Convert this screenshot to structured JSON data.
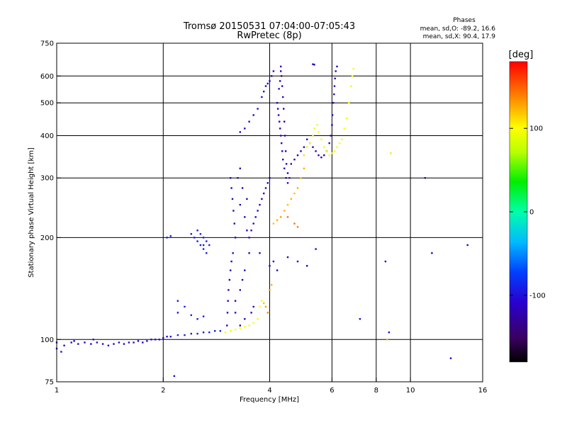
{
  "chart_data": {
    "type": "scatter",
    "title": "Tromsø 20150531 07:04:00-07:05:43",
    "subtitle": "RwPretec (8p)",
    "xlabel": "Frequency [MHz]",
    "ylabel": "Stationary phase Virtual Height [km]",
    "x_scale": "log",
    "y_scale": "log",
    "xlim": [
      1,
      16
    ],
    "ylim": [
      75,
      750
    ],
    "x_ticks": [
      1,
      2,
      4,
      6,
      8,
      10,
      16
    ],
    "y_ticks": [
      75,
      100,
      200,
      300,
      400,
      500,
      600,
      750
    ],
    "x_gridlines": [
      2,
      4,
      6,
      8,
      10
    ],
    "y_gridlines": [
      100,
      200,
      300,
      400,
      500,
      600
    ],
    "grid": true,
    "annotation": {
      "heading": "Phases",
      "lines": [
        "mean, sd,O: -89.2, 16.6",
        "mean, sd,X:  90.4, 17.9"
      ]
    },
    "colorbar": {
      "label": "[deg]",
      "range": [
        -180,
        180
      ],
      "ticks": [
        100,
        0,
        -100
      ]
    },
    "series": [
      {
        "points": [
          [
            1.0,
            98,
            -110
          ],
          [
            1.05,
            96,
            -105
          ],
          [
            1.1,
            98,
            -105
          ],
          [
            1.15,
            97,
            -110
          ],
          [
            1.2,
            98,
            -108
          ],
          [
            1.25,
            97,
            -105
          ],
          [
            1.3,
            98,
            -110
          ],
          [
            1.35,
            97,
            -105
          ],
          [
            1.4,
            96,
            -110
          ],
          [
            1.45,
            97,
            -110
          ],
          [
            1.5,
            98,
            -105
          ],
          [
            1.55,
            97,
            -108
          ],
          [
            1.6,
            98,
            -110
          ],
          [
            1.65,
            98,
            -105
          ],
          [
            1.7,
            99,
            -108
          ],
          [
            1.75,
            98,
            -110
          ],
          [
            1.8,
            99,
            -105
          ],
          [
            1.85,
            100,
            -110
          ],
          [
            1.9,
            100,
            -105
          ],
          [
            1.95,
            100,
            -108
          ],
          [
            2.0,
            101,
            -110
          ],
          [
            2.05,
            102,
            -105
          ],
          [
            2.1,
            102,
            -100
          ],
          [
            2.2,
            103,
            -90
          ],
          [
            2.3,
            103,
            -95
          ],
          [
            2.4,
            104,
            -95
          ],
          [
            2.5,
            104,
            -90
          ],
          [
            2.6,
            105,
            -95
          ],
          [
            2.7,
            105,
            -90
          ],
          [
            2.8,
            106,
            -95
          ],
          [
            2.9,
            106,
            -90
          ],
          [
            1.0,
            94,
            -105
          ],
          [
            1.03,
            92,
            -110
          ],
          [
            1.12,
            99,
            -108
          ],
          [
            1.27,
            100,
            -105
          ],
          [
            2.15,
            78,
            -110
          ]
        ]
      },
      {
        "points": [
          [
            2.4,
            205,
            -95
          ],
          [
            2.45,
            200,
            -90
          ],
          [
            2.5,
            195,
            -92
          ],
          [
            2.55,
            190,
            -95
          ],
          [
            2.6,
            185,
            -90
          ],
          [
            2.65,
            180,
            -92
          ],
          [
            2.5,
            210,
            -95
          ],
          [
            2.55,
            205,
            -90
          ],
          [
            2.6,
            200,
            -92
          ],
          [
            2.65,
            195,
            -95
          ],
          [
            2.7,
            190,
            -90
          ],
          [
            2.6,
            190,
            -92
          ],
          [
            2.05,
            200,
            -95
          ],
          [
            2.1,
            202,
            -90
          ],
          [
            2.2,
            120,
            -95
          ],
          [
            2.3,
            125,
            -92
          ],
          [
            2.4,
            118,
            -90
          ],
          [
            2.5,
            115,
            -95
          ],
          [
            2.6,
            117,
            -92
          ],
          [
            2.2,
            130,
            -95
          ]
        ]
      },
      {
        "points": [
          [
            3.1,
            300,
            -115
          ],
          [
            3.12,
            280,
            -118
          ],
          [
            3.14,
            260,
            -120
          ],
          [
            3.16,
            240,
            -118
          ],
          [
            3.18,
            220,
            -122
          ],
          [
            3.2,
            200,
            -120
          ],
          [
            3.15,
            180,
            -118
          ],
          [
            3.12,
            170,
            -122
          ],
          [
            3.1,
            160,
            -120
          ],
          [
            3.08,
            150,
            -118
          ],
          [
            3.06,
            140,
            -122
          ],
          [
            3.05,
            130,
            -120
          ],
          [
            3.04,
            120,
            -118
          ],
          [
            3.03,
            110,
            -122
          ],
          [
            3.3,
            320,
            -120
          ],
          [
            3.25,
            300,
            -118
          ],
          [
            3.35,
            280,
            -120
          ],
          [
            3.3,
            250,
            -118
          ],
          [
            3.4,
            230,
            -120
          ],
          [
            3.45,
            210,
            -122
          ],
          [
            3.5,
            200,
            -118
          ],
          [
            3.5,
            180,
            -120
          ],
          [
            3.4,
            160,
            -122
          ],
          [
            3.35,
            150,
            -118
          ],
          [
            3.3,
            140,
            -120
          ],
          [
            3.2,
            130,
            -122
          ],
          [
            3.2,
            120,
            -118
          ],
          [
            3.3,
            110,
            -120
          ],
          [
            3.4,
            115,
            -122
          ],
          [
            3.55,
            120,
            -118
          ],
          [
            3.6,
            125,
            -120
          ],
          [
            3.65,
            230,
            -118
          ],
          [
            3.7,
            240,
            -120
          ],
          [
            3.75,
            250,
            -118
          ],
          [
            3.8,
            260,
            -120
          ],
          [
            3.85,
            270,
            -118
          ],
          [
            3.9,
            280,
            -120
          ],
          [
            3.95,
            290,
            -118
          ],
          [
            4.0,
            300,
            -118
          ],
          [
            3.6,
            220,
            -120
          ],
          [
            3.55,
            210,
            -122
          ],
          [
            3.45,
            260,
            -118
          ],
          [
            3.3,
            410,
            -115
          ],
          [
            3.4,
            420,
            -113
          ],
          [
            3.5,
            440,
            -112
          ],
          [
            3.6,
            460,
            -110
          ],
          [
            3.7,
            480,
            -112
          ],
          [
            3.8,
            520,
            -110
          ],
          [
            3.85,
            540,
            -108
          ],
          [
            3.9,
            560,
            -110
          ],
          [
            4.05,
            600,
            -112
          ],
          [
            4.1,
            620,
            -110
          ],
          [
            4.0,
            580,
            -112
          ],
          [
            3.95,
            570,
            -108
          ],
          [
            3.75,
            180,
            -120
          ],
          [
            4.0,
            165,
            -118
          ],
          [
            4.1,
            170,
            -120
          ],
          [
            4.2,
            160,
            -118
          ]
        ]
      },
      {
        "points": [
          [
            4.3,
            640,
            -118
          ],
          [
            4.32,
            600,
            -120
          ],
          [
            4.34,
            560,
            -118
          ],
          [
            4.36,
            520,
            -120
          ],
          [
            4.38,
            480,
            -118
          ],
          [
            4.4,
            440,
            -120
          ],
          [
            4.42,
            400,
            -118
          ],
          [
            4.44,
            360,
            -120
          ],
          [
            4.46,
            330,
            -118
          ],
          [
            4.5,
            310,
            -120
          ],
          [
            4.55,
            300,
            -118
          ],
          [
            4.2,
            500,
            -120
          ],
          [
            4.22,
            480,
            -118
          ],
          [
            4.24,
            460,
            -120
          ],
          [
            4.26,
            440,
            -118
          ],
          [
            4.28,
            420,
            -120
          ],
          [
            4.3,
            400,
            -118
          ],
          [
            4.32,
            380,
            -120
          ],
          [
            4.34,
            360,
            -118
          ],
          [
            4.36,
            340,
            -120
          ],
          [
            4.4,
            320,
            -118
          ],
          [
            4.45,
            300,
            -120
          ],
          [
            4.5,
            290,
            -118
          ],
          [
            4.6,
            330,
            -120
          ],
          [
            4.7,
            340,
            -118
          ],
          [
            4.8,
            350,
            -120
          ],
          [
            4.9,
            360,
            -118
          ],
          [
            5.0,
            370,
            -120
          ],
          [
            5.1,
            390,
            -118
          ],
          [
            5.2,
            380,
            -120
          ],
          [
            5.3,
            370,
            -118
          ],
          [
            5.4,
            360,
            -120
          ],
          [
            5.5,
            350,
            -118
          ],
          [
            5.6,
            345,
            -120
          ],
          [
            5.7,
            350,
            -118
          ],
          [
            5.8,
            360,
            -120
          ],
          [
            5.9,
            380,
            -118
          ],
          [
            5.95,
            400,
            -120
          ],
          [
            6.0,
            430,
            -118
          ],
          [
            6.02,
            460,
            -120
          ],
          [
            6.05,
            500,
            -118
          ],
          [
            6.08,
            530,
            -120
          ],
          [
            6.1,
            560,
            -118
          ],
          [
            6.12,
            590,
            -120
          ],
          [
            6.15,
            620,
            -118
          ],
          [
            6.2,
            640,
            -120
          ],
          [
            5.3,
            650,
            -118
          ],
          [
            5.35,
            648,
            -120
          ],
          [
            4.25,
            550,
            -118
          ],
          [
            4.28,
            580,
            -120
          ],
          [
            4.3,
            620,
            -118
          ]
        ]
      },
      {
        "points": [
          [
            3.0,
            105,
            100
          ],
          [
            3.1,
            106,
            95
          ],
          [
            3.2,
            107,
            100
          ],
          [
            3.3,
            108,
            95
          ],
          [
            3.4,
            109,
            100
          ],
          [
            3.5,
            110,
            95
          ],
          [
            3.6,
            112,
            100
          ],
          [
            3.7,
            115,
            95
          ],
          [
            3.75,
            125,
            100
          ],
          [
            3.8,
            130,
            95
          ],
          [
            3.85,
            128,
            120
          ],
          [
            3.9,
            125,
            130
          ],
          [
            3.95,
            120,
            140
          ],
          [
            4.0,
            140,
            130
          ],
          [
            4.05,
            145,
            125
          ],
          [
            4.1,
            220,
            120
          ],
          [
            4.2,
            225,
            125
          ],
          [
            4.3,
            230,
            130
          ],
          [
            4.4,
            240,
            125
          ],
          [
            4.5,
            250,
            120
          ],
          [
            4.6,
            260,
            125
          ],
          [
            4.7,
            270,
            120
          ],
          [
            4.8,
            280,
            125
          ],
          [
            4.9,
            300,
            120
          ],
          [
            5.0,
            320,
            125
          ],
          [
            5.0,
            350,
            110
          ],
          [
            5.1,
            370,
            105
          ],
          [
            5.2,
            380,
            100
          ],
          [
            5.3,
            400,
            95
          ],
          [
            5.35,
            420,
            100
          ],
          [
            5.45,
            430,
            95
          ],
          [
            5.5,
            410,
            100
          ],
          [
            5.6,
            390,
            95
          ],
          [
            5.7,
            370,
            100
          ],
          [
            5.8,
            360,
            95
          ],
          [
            5.9,
            350,
            100
          ],
          [
            6.0,
            355,
            95
          ],
          [
            6.1,
            360,
            100
          ],
          [
            6.2,
            370,
            95
          ],
          [
            6.3,
            380,
            100
          ],
          [
            6.4,
            390,
            95
          ],
          [
            6.5,
            420,
            100
          ],
          [
            6.6,
            450,
            95
          ],
          [
            6.7,
            500,
            100
          ],
          [
            6.8,
            560,
            95
          ],
          [
            6.85,
            600,
            100
          ],
          [
            6.9,
            630,
            95
          ],
          [
            4.7,
            220,
            145
          ],
          [
            4.8,
            215,
            140
          ],
          [
            4.5,
            230,
            145
          ],
          [
            8.8,
            355,
            110
          ],
          [
            8.6,
            100,
            120
          ]
        ]
      },
      {
        "points": [
          [
            8.5,
            170,
            -115
          ],
          [
            8.7,
            105,
            -110
          ],
          [
            7.2,
            115,
            -112
          ],
          [
            11.0,
            300,
            -110
          ],
          [
            11.5,
            180,
            -115
          ],
          [
            13.0,
            88,
            -112
          ],
          [
            14.5,
            190,
            -118
          ],
          [
            4.5,
            175,
            -110
          ],
          [
            4.8,
            170,
            -112
          ],
          [
            5.1,
            165,
            -115
          ],
          [
            5.4,
            185,
            -110
          ]
        ]
      }
    ]
  }
}
